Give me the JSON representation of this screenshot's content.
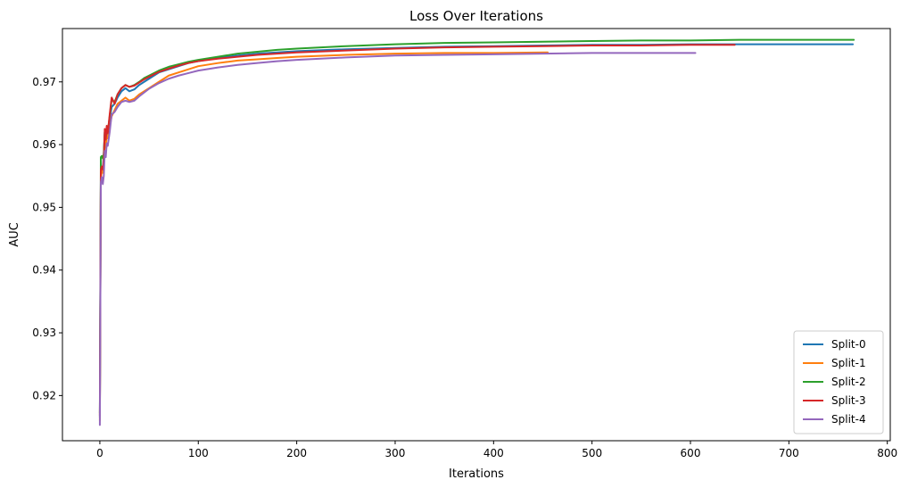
{
  "chart_data": {
    "type": "line",
    "title": "Loss Over Iterations",
    "xlabel": "Iterations",
    "ylabel": "AUC",
    "xlim": [
      -38,
      803
    ],
    "ylim": [
      0.9128,
      0.9785
    ],
    "xticks": [
      0,
      100,
      200,
      300,
      400,
      500,
      600,
      700,
      800
    ],
    "xtick_labels": [
      "0",
      "100",
      "200",
      "300",
      "400",
      "500",
      "600",
      "700",
      "800"
    ],
    "yticks": [
      0.92,
      0.93,
      0.94,
      0.95,
      0.96,
      0.97
    ],
    "ytick_labels": [
      "0.92",
      "0.93",
      "0.94",
      "0.95",
      "0.96",
      "0.97"
    ],
    "grid": false,
    "legend_position": "lower-right",
    "series": [
      {
        "name": "Split-0",
        "color": "#1f77b4",
        "x": [
          0,
          1,
          2,
          3,
          4,
          5,
          6,
          7,
          8,
          10,
          12,
          15,
          18,
          22,
          26,
          30,
          35,
          40,
          45,
          50,
          60,
          70,
          80,
          90,
          100,
          120,
          140,
          160,
          180,
          200,
          250,
          300,
          350,
          400,
          450,
          500,
          550,
          600,
          650,
          700,
          765
        ],
        "values": [
          0.9165,
          0.9555,
          0.9565,
          0.956,
          0.9585,
          0.962,
          0.9605,
          0.9625,
          0.9615,
          0.964,
          0.966,
          0.9665,
          0.9675,
          0.9685,
          0.969,
          0.9685,
          0.9688,
          0.9695,
          0.97,
          0.9705,
          0.9715,
          0.972,
          0.9725,
          0.973,
          0.9733,
          0.9738,
          0.9742,
          0.9745,
          0.9747,
          0.9749,
          0.9752,
          0.9754,
          0.9756,
          0.9757,
          0.9758,
          0.9759,
          0.9759,
          0.976,
          0.976,
          0.976,
          0.976
        ]
      },
      {
        "name": "Split-1",
        "color": "#ff7f0e",
        "x": [
          0,
          1,
          2,
          3,
          4,
          5,
          6,
          7,
          8,
          10,
          12,
          15,
          18,
          22,
          26,
          30,
          35,
          40,
          45,
          50,
          60,
          70,
          80,
          90,
          100,
          120,
          140,
          160,
          180,
          200,
          250,
          300,
          350,
          400,
          455
        ],
        "values": [
          0.916,
          0.9545,
          0.956,
          0.9555,
          0.957,
          0.9605,
          0.9595,
          0.9615,
          0.961,
          0.963,
          0.9645,
          0.9655,
          0.9665,
          0.967,
          0.9675,
          0.967,
          0.9673,
          0.968,
          0.9685,
          0.969,
          0.97,
          0.971,
          0.9715,
          0.972,
          0.9725,
          0.973,
          0.9734,
          0.9736,
          0.9738,
          0.974,
          0.9743,
          0.9745,
          0.9746,
          0.9746,
          0.9747
        ]
      },
      {
        "name": "Split-2",
        "color": "#2ca02c",
        "x": [
          0,
          1,
          2,
          3,
          4,
          5,
          6,
          7,
          8,
          10,
          12,
          15,
          18,
          22,
          26,
          30,
          35,
          40,
          45,
          50,
          60,
          70,
          80,
          90,
          100,
          120,
          140,
          160,
          180,
          200,
          250,
          300,
          350,
          400,
          450,
          500,
          550,
          600,
          650,
          700,
          766
        ],
        "values": [
          0.9172,
          0.958,
          0.9582,
          0.9578,
          0.9585,
          0.962,
          0.9612,
          0.9628,
          0.962,
          0.9645,
          0.9672,
          0.9668,
          0.968,
          0.969,
          0.9695,
          0.9692,
          0.9695,
          0.97,
          0.9706,
          0.971,
          0.9718,
          0.9724,
          0.9728,
          0.9732,
          0.9735,
          0.974,
          0.9745,
          0.9748,
          0.9751,
          0.9753,
          0.9757,
          0.976,
          0.9762,
          0.9763,
          0.9764,
          0.9765,
          0.9766,
          0.9766,
          0.9767,
          0.9767,
          0.9767
        ]
      },
      {
        "name": "Split-3",
        "color": "#d62728",
        "x": [
          0,
          1,
          2,
          3,
          4,
          5,
          6,
          7,
          8,
          10,
          12,
          15,
          18,
          22,
          26,
          30,
          35,
          40,
          45,
          50,
          60,
          70,
          80,
          90,
          100,
          120,
          140,
          160,
          180,
          200,
          250,
          300,
          350,
          400,
          450,
          500,
          550,
          600,
          645
        ],
        "values": [
          0.9168,
          0.956,
          0.9565,
          0.956,
          0.9575,
          0.9625,
          0.9608,
          0.963,
          0.9618,
          0.9648,
          0.9675,
          0.9665,
          0.968,
          0.969,
          0.9695,
          0.9692,
          0.9694,
          0.9699,
          0.9704,
          0.9708,
          0.9716,
          0.9721,
          0.9726,
          0.973,
          0.9733,
          0.9737,
          0.974,
          0.9743,
          0.9745,
          0.9747,
          0.975,
          0.9753,
          0.9755,
          0.9756,
          0.9757,
          0.9758,
          0.9758,
          0.9759,
          0.9759
        ]
      },
      {
        "name": "Split-4",
        "color": "#9467bd",
        "x": [
          0,
          1,
          2,
          3,
          4,
          5,
          6,
          7,
          8,
          10,
          12,
          15,
          18,
          22,
          26,
          30,
          35,
          40,
          45,
          50,
          60,
          70,
          80,
          90,
          100,
          120,
          140,
          160,
          180,
          200,
          250,
          300,
          350,
          400,
          450,
          500,
          550,
          605
        ],
        "values": [
          0.9153,
          0.954,
          0.9548,
          0.9537,
          0.955,
          0.959,
          0.958,
          0.9602,
          0.9598,
          0.962,
          0.9648,
          0.9652,
          0.966,
          0.9668,
          0.967,
          0.9668,
          0.967,
          0.9677,
          0.9683,
          0.9689,
          0.9698,
          0.9705,
          0.971,
          0.9714,
          0.9718,
          0.9723,
          0.9727,
          0.973,
          0.9733,
          0.9735,
          0.9739,
          0.9742,
          0.9743,
          0.9744,
          0.9745,
          0.9746,
          0.9746,
          0.9746
        ]
      }
    ]
  }
}
